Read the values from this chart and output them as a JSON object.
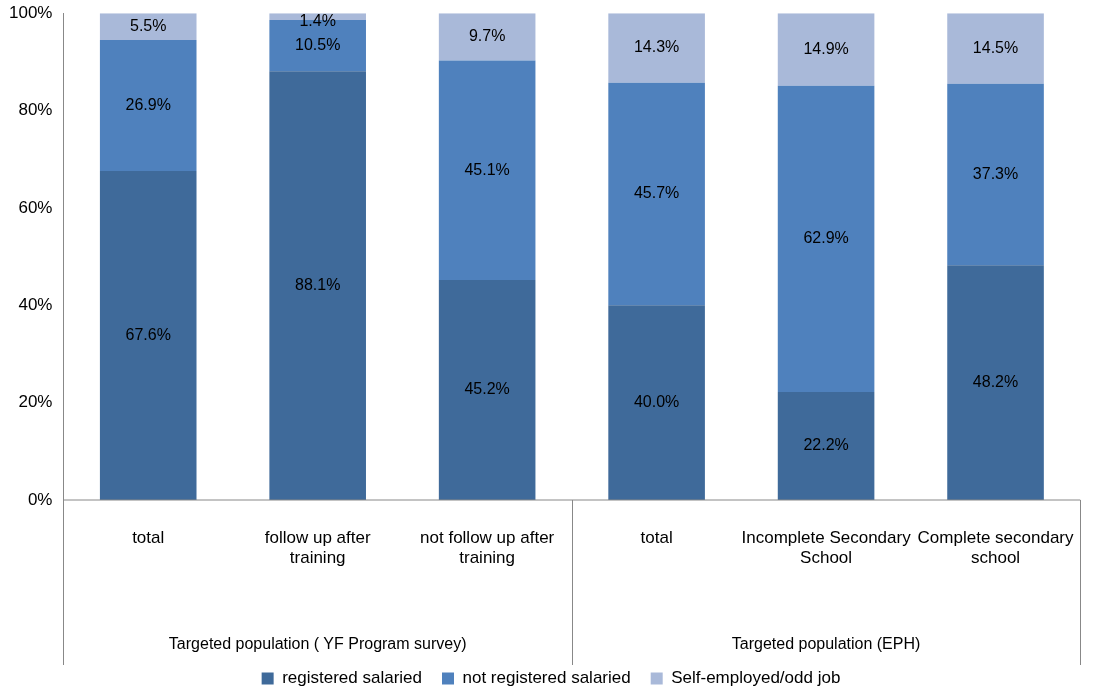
{
  "chart_data": {
    "type": "bar",
    "stacked": true,
    "categories": [
      "total",
      "follow up after training",
      "not follow up after training",
      "total",
      "Incomplete Secondary School",
      "Complete secondary school"
    ],
    "series": [
      {
        "name": "registered salaried",
        "color": "#3f6a9a",
        "values": [
          67.6,
          88.1,
          45.2,
          40.0,
          22.2,
          48.2
        ],
        "value_labels": [
          "67.6%",
          "88.1%",
          "45.2%",
          "40.0%",
          "22.2%",
          "48.2%"
        ]
      },
      {
        "name": "not registered salaried",
        "color": "#4f81bd",
        "values": [
          26.9,
          10.5,
          45.1,
          45.7,
          62.9,
          37.3
        ],
        "value_labels": [
          "26.9%",
          "10.5%",
          "45.1%",
          "45.7%",
          "62.9%",
          "37.3%"
        ]
      },
      {
        "name": "Self-employed/odd job",
        "color": "#a9b9d9",
        "values": [
          5.5,
          1.4,
          9.7,
          14.3,
          14.9,
          14.5
        ],
        "value_labels": [
          "5.5%",
          "1.4%",
          "9.7%",
          "14.3%",
          "14.9%",
          "14.5%"
        ]
      }
    ],
    "ylim": [
      0,
      100
    ],
    "yticks": [
      {
        "value": 0,
        "label": "0%"
      },
      {
        "value": 20,
        "label": "20%"
      },
      {
        "value": 40,
        "label": "40%"
      },
      {
        "value": 60,
        "label": "60%"
      },
      {
        "value": 80,
        "label": "80%"
      },
      {
        "value": 100,
        "label": "100%"
      }
    ],
    "annotations": [
      "Targeted population ( YF Program survey)",
      "Targeted population (EPH)"
    ],
    "grid": false,
    "legend": "bottom"
  }
}
